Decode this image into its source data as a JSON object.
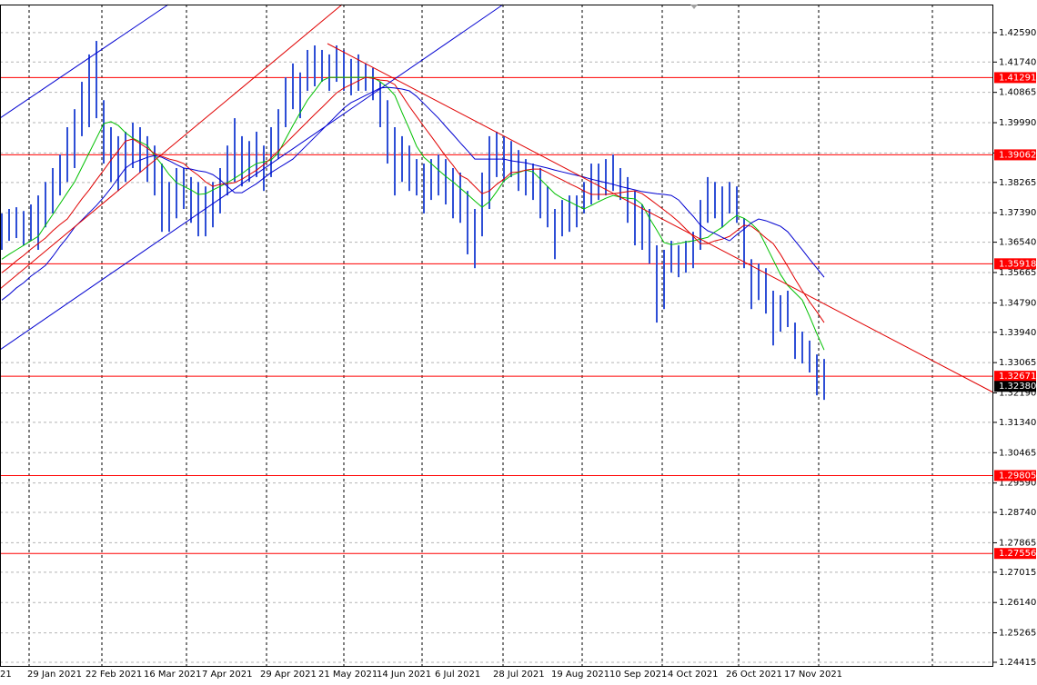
{
  "chart_data": {
    "type": "range",
    "bar_color": "#2f4fd6",
    "ylim": [
      1.2431,
      1.434
    ],
    "yticks": [
      {
        "value": 1.4259,
        "label": "1.42590"
      },
      {
        "value": 1.4174,
        "label": "1.41740"
      },
      1.40865,
      {
        "value": 1.3999,
        "label": "1.39990"
      },
      1.39115,
      1.38265,
      {
        "value": 1.3739,
        "label": "1.37390"
      },
      {
        "value": 1.3654,
        "label": "1.36540"
      },
      1.35665,
      {
        "value": 1.3479,
        "label": "1.34790"
      },
      {
        "value": 1.3394,
        "label": "1.33940"
      },
      1.33065,
      {
        "value": 1.3219,
        "label": "1.32190"
      },
      {
        "value": 1.3134,
        "label": "1.31340"
      },
      1.30465,
      {
        "value": 1.2959,
        "label": "1.29590"
      },
      {
        "value": 1.2874,
        "label": "1.28740"
      },
      1.27865,
      1.27015,
      {
        "value": 1.2614,
        "label": "1.26140"
      },
      1.25265,
      1.24415
    ],
    "grid": true,
    "hlines": [
      1.41291,
      1.39062,
      1.35918,
      1.32671,
      1.29805,
      1.27556
    ],
    "hline_color": "#ff0000",
    "current_price": {
      "value": 1.3238,
      "label": "1.32380"
    },
    "categories": [
      "21",
      null,
      null,
      null,
      "29 Jan 2021",
      null,
      null,
      null,
      null,
      null,
      null,
      null,
      "22 Feb 2021",
      null,
      null,
      null,
      null,
      null,
      null,
      null,
      "16 Mar 2021",
      null,
      null,
      null,
      null,
      null,
      null,
      null,
      "7 Apr 2021",
      null,
      null,
      null,
      null,
      null,
      null,
      null,
      "29 Apr 2021",
      null,
      null,
      null,
      null,
      null,
      null,
      null,
      "21 May 2021",
      null,
      null,
      null,
      null,
      null,
      null,
      null,
      "14 Jun 2021",
      null,
      null,
      null,
      null,
      null,
      null,
      null,
      "6 Jul 2021",
      null,
      null,
      null,
      null,
      null,
      null,
      null,
      "28 Jul 2021",
      null,
      null,
      null,
      null,
      null,
      null,
      null,
      "19 Aug 2021",
      null,
      null,
      null,
      null,
      null,
      null,
      null,
      "10 Sep 2021",
      null,
      null,
      null,
      null,
      null,
      null,
      null,
      "4 Oct 2021",
      null,
      null,
      null,
      null,
      null,
      null,
      null,
      "26 Oct 2021",
      null,
      null,
      null,
      null,
      null,
      null,
      null,
      "17 Nov 2021",
      null,
      null,
      null,
      null,
      null
    ],
    "high": [
      1.3737,
      1.375,
      1.3755,
      1.3744,
      1.3763,
      1.3789,
      1.3828,
      1.3868,
      1.3907,
      1.3986,
      1.4038,
      1.4117,
      1.4196,
      1.4235,
      1.4064,
      1.3986,
      1.396,
      1.3973,
      1.3999,
      1.3986,
      1.396,
      1.3933,
      1.3881,
      1.3828,
      1.3868,
      1.3868,
      1.3842,
      1.3828,
      1.3815,
      1.3828,
      1.3868,
      1.3933,
      1.4012,
      1.396,
      1.3946,
      1.3973,
      1.3933,
      1.3986,
      1.4038,
      1.413,
      1.417,
      1.4144,
      1.4209,
      1.4222,
      1.4209,
      1.4196,
      1.4222,
      1.4209,
      1.4183,
      1.4196,
      1.417,
      1.4157,
      1.4117,
      1.4064,
      1.3986,
      1.396,
      1.3933,
      1.3894,
      1.3881,
      1.3894,
      1.3907,
      1.3894,
      1.3868,
      1.3855,
      1.3802,
      1.375,
      1.3855,
      1.396,
      1.3973,
      1.396,
      1.3946,
      1.392,
      1.3894,
      1.3881,
      1.3868,
      1.3815,
      1.375,
      1.3776,
      1.3789,
      1.3789,
      1.3828,
      1.3881,
      1.3881,
      1.3894,
      1.3907,
      1.3868,
      1.3842,
      1.3802,
      1.3763,
      1.375,
      1.3645,
      1.3632,
      1.3658,
      1.3645,
      1.3658,
      1.3684,
      1.3776,
      1.3842,
      1.3828,
      1.3815,
      1.3828,
      1.3815,
      1.3723,
      1.3605,
      1.3592,
      1.3579,
      1.3514,
      1.3501,
      1.3514,
      1.3422,
      1.3396,
      1.337,
      1.333,
      1.3317
    ],
    "low": [
      1.3632,
      1.3658,
      1.3666,
      1.3645,
      1.3658,
      1.3632,
      1.3697,
      1.3737,
      1.3789,
      1.3828,
      1.3868,
      1.396,
      1.3986,
      1.4012,
      1.3881,
      1.3828,
      1.3802,
      1.3828,
      1.3868,
      1.3855,
      1.3828,
      1.3789,
      1.3684,
      1.3684,
      1.3723,
      1.375,
      1.371,
      1.3671,
      1.3671,
      1.3697,
      1.3737,
      1.3789,
      1.3828,
      1.3815,
      1.3828,
      1.3842,
      1.3802,
      1.3842,
      1.3894,
      1.3986,
      1.4038,
      1.4012,
      1.4091,
      1.4104,
      1.4117,
      1.4091,
      1.4117,
      1.4091,
      1.4078,
      1.4091,
      1.4091,
      1.4064,
      1.3986,
      1.3881,
      1.3789,
      1.3828,
      1.3802,
      1.3789,
      1.3737,
      1.3776,
      1.3789,
      1.3763,
      1.3723,
      1.371,
      1.3619,
      1.3579,
      1.3671,
      1.375,
      1.3842,
      1.3828,
      1.3842,
      1.3802,
      1.3789,
      1.3776,
      1.3723,
      1.3697,
      1.3605,
      1.3671,
      1.3684,
      1.3697,
      1.3737,
      1.3763,
      1.3776,
      1.3789,
      1.3802,
      1.3776,
      1.371,
      1.3645,
      1.3632,
      1.3592,
      1.3422,
      1.3461,
      1.3566,
      1.3553,
      1.3566,
      1.3579,
      1.3632,
      1.371,
      1.3723,
      1.3697,
      1.3737,
      1.371,
      1.3579,
      1.3461,
      1.3487,
      1.3448,
      1.3356,
      1.3396,
      1.3409,
      1.3317,
      1.3304,
      1.3278,
      1.3212,
      1.3199
    ],
    "series": [
      {
        "color": "#00c000",
        "values": [
          1.3605,
          1.3619,
          1.3632,
          1.3645,
          1.3658,
          1.3671,
          1.3703,
          1.3734,
          1.3765,
          1.3797,
          1.3828,
          1.387,
          1.3912,
          1.3954,
          1.3996,
          1.4002,
          1.3991,
          1.397,
          1.3954,
          1.3944,
          1.3933,
          1.3904,
          1.3878,
          1.3849,
          1.3826,
          1.3815,
          1.3805,
          1.3792,
          1.3794,
          1.3805,
          1.3815,
          1.3826,
          1.3839,
          1.3852,
          1.3868,
          1.3881,
          1.3886,
          1.3891,
          1.3912,
          1.3952,
          1.3991,
          1.4028,
          1.4064,
          1.4091,
          1.412,
          1.413,
          1.413,
          1.413,
          1.413,
          1.413,
          1.413,
          1.413,
          1.4117,
          1.4101,
          1.4078,
          1.4028,
          1.3981,
          1.3931,
          1.3899,
          1.3881,
          1.3862,
          1.3844,
          1.3828,
          1.381,
          1.3792,
          1.3773,
          1.3755,
          1.3771,
          1.38,
          1.3831,
          1.3847,
          1.3855,
          1.3862,
          1.3857,
          1.3836,
          1.3815,
          1.3794,
          1.3781,
          1.3771,
          1.376,
          1.375,
          1.376,
          1.3771,
          1.3781,
          1.3789,
          1.3784,
          1.3781,
          1.3779,
          1.3763,
          1.3723,
          1.3689,
          1.3653,
          1.3647,
          1.365,
          1.3655,
          1.3658,
          1.3663,
          1.3668,
          1.3684,
          1.3697,
          1.3716,
          1.3731,
          1.3723,
          1.3708,
          1.3687,
          1.3645,
          1.3603,
          1.3561,
          1.3529,
          1.3508,
          1.3487,
          1.344,
          1.339,
          1.3343
        ]
      },
      {
        "color": "#e00000",
        "values": [
          1.3566,
          1.3582,
          1.36,
          1.3616,
          1.3634,
          1.365,
          1.3666,
          1.3687,
          1.3705,
          1.3721,
          1.375,
          1.3779,
          1.3805,
          1.3834,
          1.3862,
          1.3891,
          1.3918,
          1.3946,
          1.3952,
          1.3939,
          1.3925,
          1.391,
          1.3902,
          1.3894,
          1.3889,
          1.3881,
          1.3862,
          1.3847,
          1.3828,
          1.3815,
          1.3821,
          1.3823,
          1.3826,
          1.3836,
          1.3849,
          1.3862,
          1.3878,
          1.3897,
          1.3918,
          1.3939,
          1.396,
          1.3981,
          1.4002,
          1.4023,
          1.4043,
          1.4064,
          1.4085,
          1.4099,
          1.4109,
          1.412,
          1.413,
          1.4127,
          1.4122,
          1.412,
          1.4109,
          1.4078,
          1.4046,
          1.4017,
          1.3988,
          1.396,
          1.3931,
          1.3902,
          1.3876,
          1.3847,
          1.3836,
          1.3815,
          1.3794,
          1.3802,
          1.3821,
          1.3836,
          1.3855,
          1.3857,
          1.3862,
          1.3865,
          1.3865,
          1.3855,
          1.3844,
          1.3834,
          1.3823,
          1.3813,
          1.3802,
          1.3792,
          1.3792,
          1.3792,
          1.3794,
          1.3797,
          1.38,
          1.3802,
          1.3794,
          1.3779,
          1.3763,
          1.3747,
          1.3731,
          1.3713,
          1.3692,
          1.3671,
          1.365,
          1.365,
          1.3658,
          1.3663,
          1.3671,
          1.3687,
          1.3703,
          1.37,
          1.3684,
          1.3666,
          1.365,
          1.3619,
          1.3584,
          1.3548,
          1.3514,
          1.3482,
          1.3453,
          1.3422
        ]
      },
      {
        "color": "#0000d0",
        "values": [
          1.3487,
          1.3503,
          1.3522,
          1.3537,
          1.3556,
          1.3571,
          1.3587,
          1.3613,
          1.3642,
          1.3668,
          1.3697,
          1.3718,
          1.3739,
          1.376,
          1.3784,
          1.381,
          1.3839,
          1.3868,
          1.3883,
          1.3891,
          1.3899,
          1.3904,
          1.3899,
          1.3889,
          1.3878,
          1.3868,
          1.3865,
          1.386,
          1.3857,
          1.3849,
          1.3834,
          1.3815,
          1.3797,
          1.3797,
          1.381,
          1.3823,
          1.3839,
          1.3855,
          1.3868,
          1.3881,
          1.3894,
          1.3915,
          1.3936,
          1.3957,
          1.3978,
          1.3999,
          1.402,
          1.4041,
          1.4057,
          1.4067,
          1.4078,
          1.4088,
          1.4099,
          1.4101,
          1.4099,
          1.4096,
          1.4091,
          1.4075,
          1.4054,
          1.4033,
          1.4012,
          1.3988,
          1.3965,
          1.3941,
          1.3918,
          1.3894,
          1.3894,
          1.3894,
          1.3894,
          1.3894,
          1.3889,
          1.3886,
          1.3883,
          1.3878,
          1.3873,
          1.3868,
          1.3862,
          1.3857,
          1.3852,
          1.3847,
          1.3842,
          1.3836,
          1.3831,
          1.3826,
          1.3821,
          1.3815,
          1.381,
          1.3805,
          1.38,
          1.3797,
          1.3794,
          1.3792,
          1.3789,
          1.3776,
          1.3752,
          1.3729,
          1.3703,
          1.3687,
          1.3679,
          1.3668,
          1.3658,
          1.3676,
          1.3692,
          1.371,
          1.3721,
          1.3716,
          1.3708,
          1.37,
          1.3684,
          1.3658,
          1.3632,
          1.3605,
          1.3579,
          1.3553
        ]
      }
    ]
  }
}
